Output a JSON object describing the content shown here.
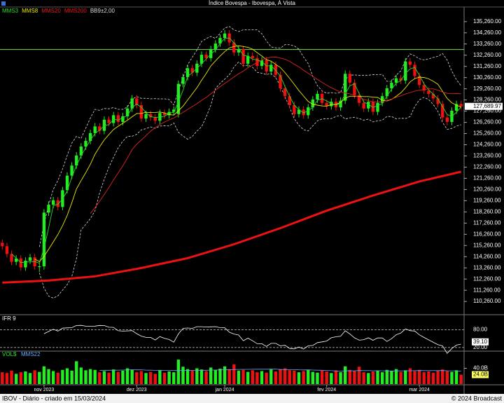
{
  "chart_data": {
    "type": "candlestick",
    "title": "Índice Bovespa - Ibovespa, À Vista",
    "footer_left": "IBOV - Diário - criado em 15/03/2024",
    "footer_right": "© 2024 Broadcast",
    "xlim": [
      -0.5,
      99.5
    ],
    "xticks": [
      {
        "value": 9,
        "label": "nov 2023"
      },
      {
        "value": 29,
        "label": "dez 2023"
      },
      {
        "value": 48,
        "label": "jan 2024"
      },
      {
        "value": 70,
        "label": "fev 2024"
      },
      {
        "value": 90,
        "label": "mar 2024"
      }
    ],
    "ylim": [
      109140,
      136440
    ],
    "yticks": [
      {
        "value": 110260,
        "label": "110,260.00"
      },
      {
        "value": 111260,
        "label": "111,260.00"
      },
      {
        "value": 112260,
        "label": "112,260.00"
      },
      {
        "value": 113260,
        "label": "113,260.00"
      },
      {
        "value": 114260,
        "label": "114,260.00"
      },
      {
        "value": 115260,
        "label": "115,260.00"
      },
      {
        "value": 116260,
        "label": "116,260.00"
      },
      {
        "value": 117260,
        "label": "117,260.00"
      },
      {
        "value": 118260,
        "label": "118,260.00"
      },
      {
        "value": 119260,
        "label": "119,260.00"
      },
      {
        "value": 120260,
        "label": "120,260.00"
      },
      {
        "value": 121260,
        "label": "121,260.00"
      },
      {
        "value": 122260,
        "label": "122,260.00"
      },
      {
        "value": 123260,
        "label": "123,260.00"
      },
      {
        "value": 124260,
        "label": "124,260.00"
      },
      {
        "value": 125260,
        "label": "125,260.00"
      },
      {
        "value": 126260,
        "label": "126,260.00"
      },
      {
        "value": 127260,
        "label": "127,260.00"
      },
      {
        "value": 128260,
        "label": "128,260.00"
      },
      {
        "value": 129260,
        "label": "129,260.00"
      },
      {
        "value": 130260,
        "label": "130,260.00"
      },
      {
        "value": 131260,
        "label": "131,260.00"
      },
      {
        "value": 132260,
        "label": "132,260.00"
      },
      {
        "value": 133260,
        "label": "133,260.00"
      },
      {
        "value": 134260,
        "label": "134,260.00"
      },
      {
        "value": 135260,
        "label": "135,260.00"
      }
    ],
    "up_color": "#22ee22",
    "down_color": "#ee1111",
    "hline": {
      "value": 132770,
      "color": "#7ddc5a"
    },
    "last_price": {
      "value": 127689.97,
      "label": "127,689.97"
    },
    "open": [
      115500,
      115200,
      114500,
      113800,
      114100,
      113300,
      113900,
      114200,
      113400,
      113400,
      118200,
      118900,
      119300,
      118700,
      120200,
      121500,
      122400,
      123300,
      124100,
      124600,
      125300,
      125900,
      125500,
      126500,
      126200,
      126900,
      126300,
      126800,
      127500,
      128400,
      127800,
      126600,
      127000,
      126700,
      126400,
      127100,
      126900,
      127200,
      127000,
      129700,
      130300,
      131100,
      130700,
      131500,
      132300,
      132000,
      132800,
      133300,
      133800,
      134200,
      133400,
      132500,
      132800,
      131500,
      132200,
      132000,
      131300,
      131800,
      130800,
      131400,
      130500,
      129300,
      128600,
      127800,
      127000,
      127400,
      126900,
      127600,
      128300,
      128800,
      128000,
      127700,
      128100,
      127600,
      128200,
      130600,
      129800,
      128700,
      128000,
      127500,
      128100,
      127200,
      128000,
      128600,
      129300,
      129800,
      130200,
      130000,
      131700,
      131400,
      130400,
      129600,
      129100,
      128800,
      128400,
      127900,
      126700,
      126300,
      127300,
      127900
    ],
    "high": [
      115800,
      115500,
      114800,
      114400,
      114400,
      114200,
      114500,
      114500,
      113700,
      118500,
      119200,
      119600,
      119600,
      120500,
      121800,
      122700,
      123600,
      124400,
      124900,
      125600,
      126200,
      126200,
      126800,
      126800,
      127200,
      127200,
      127100,
      127800,
      128700,
      128700,
      128100,
      127300,
      127300,
      127000,
      127400,
      127400,
      127500,
      127700,
      130000,
      130600,
      131400,
      131400,
      131800,
      132600,
      132600,
      133100,
      133600,
      134100,
      134500,
      134500,
      133700,
      133100,
      133100,
      132500,
      132500,
      132300,
      132100,
      132100,
      131700,
      131700,
      130800,
      129600,
      128900,
      128100,
      127700,
      127700,
      127900,
      128600,
      129100,
      129100,
      128300,
      128400,
      128400,
      128500,
      130900,
      130900,
      130100,
      129000,
      128300,
      128400,
      128400,
      128300,
      128900,
      129600,
      130100,
      130500,
      130500,
      132000,
      132000,
      131700,
      130700,
      129900,
      129400,
      129100,
      128700,
      128200,
      127000,
      127600,
      128200,
      128200
    ],
    "low": [
      114900,
      114200,
      113500,
      113500,
      113000,
      113000,
      113600,
      113100,
      112900,
      113100,
      117900,
      118600,
      118400,
      118400,
      119900,
      121200,
      122100,
      123000,
      123800,
      124300,
      125000,
      125200,
      125200,
      125900,
      125900,
      126000,
      126000,
      126500,
      127200,
      127500,
      126300,
      126300,
      126400,
      126100,
      126100,
      126600,
      126600,
      126900,
      126700,
      129400,
      130000,
      130400,
      130400,
      131200,
      131700,
      131700,
      132500,
      133000,
      133500,
      133100,
      132200,
      132200,
      131200,
      131200,
      131700,
      131000,
      131000,
      130500,
      130500,
      130200,
      129000,
      128300,
      127500,
      126700,
      126700,
      126600,
      126600,
      127300,
      128000,
      127700,
      127400,
      127400,
      127300,
      127300,
      127900,
      129500,
      128400,
      127700,
      127200,
      127200,
      126900,
      126900,
      127700,
      128300,
      129000,
      129500,
      129700,
      129700,
      131100,
      130100,
      129300,
      128800,
      128500,
      128100,
      127600,
      126400,
      126000,
      126000,
      127000,
      127390
    ],
    "close": [
      115200,
      114500,
      113800,
      114100,
      113300,
      113900,
      114200,
      113400,
      113400,
      118200,
      118900,
      119300,
      118700,
      120200,
      121500,
      122400,
      123300,
      124100,
      124600,
      125300,
      125900,
      125500,
      126500,
      126200,
      126900,
      126300,
      126800,
      127500,
      128400,
      127800,
      126600,
      127000,
      126700,
      126400,
      127100,
      126900,
      127200,
      127400,
      129700,
      130300,
      131100,
      130700,
      131500,
      132300,
      132000,
      132800,
      133300,
      133800,
      134200,
      133400,
      132500,
      132800,
      131500,
      132200,
      132000,
      131300,
      131800,
      130800,
      131400,
      130500,
      129300,
      128600,
      127800,
      127000,
      127400,
      126900,
      127600,
      128300,
      128800,
      128000,
      127700,
      128100,
      127600,
      128200,
      130600,
      129800,
      128700,
      128000,
      127500,
      128100,
      127200,
      128000,
      128600,
      129300,
      129800,
      130200,
      130000,
      131700,
      131400,
      130400,
      129600,
      129100,
      128800,
      128400,
      127900,
      126700,
      126300,
      127300,
      127900,
      127689.97
    ],
    "series": [
      {
        "name": "MMS3",
        "color": "#22dd22",
        "period": 3
      },
      {
        "name": "MMS8",
        "color": "#e8e800",
        "period": 8
      },
      {
        "name": "MMS20",
        "color": "#dd2222",
        "period": 20
      },
      {
        "name": "MMS200",
        "color": "#ee1111",
        "x": [
          0,
          10,
          20,
          30,
          40,
          50,
          60,
          70,
          80,
          90,
          99
        ],
        "values": [
          111940,
          112130,
          112500,
          113250,
          114130,
          115370,
          116810,
          118370,
          119730,
          120980,
          121850
        ]
      },
      {
        "name": "BB9±2,00",
        "color": "#dddddd",
        "period": 9,
        "width": 2
      }
    ],
    "rsi": {
      "name": "IFR 9",
      "period": 9,
      "color": "#ffffff",
      "ylim": [
        10,
        105
      ],
      "yticks": [
        {
          "value": 80,
          "label": "80.00"
        },
        {
          "value": 20,
          "label": "20.00"
        }
      ],
      "last": {
        "value": 39.1,
        "label": "39.10"
      }
    },
    "volume": {
      "name": "VOL$",
      "ma_name": "MMS22",
      "ma_period": 22,
      "ma_color": "#66aaff",
      "ylim": [
        0,
        80
      ],
      "yticks": [
        {
          "value": 40,
          "label": "40.0B"
        }
      ],
      "last": {
        "value": 24,
        "label": "24.0B"
      },
      "values": [
        30,
        28,
        34,
        26,
        30,
        32,
        28,
        35,
        31,
        45,
        38,
        33,
        29,
        36,
        40,
        34,
        58,
        42,
        35,
        38,
        36,
        30,
        33,
        29,
        37,
        31,
        34,
        40,
        36,
        30,
        33,
        28,
        31,
        26,
        35,
        29,
        32,
        30,
        62,
        44,
        38,
        35,
        40,
        37,
        33,
        42,
        36,
        39,
        45,
        38,
        50,
        34,
        36,
        31,
        35,
        30,
        33,
        29,
        37,
        32,
        38,
        40,
        35,
        34,
        30,
        33,
        36,
        31,
        29,
        34,
        32,
        28,
        35,
        30,
        45,
        36,
        33,
        44,
        30,
        28,
        32,
        34,
        30,
        36,
        33,
        38,
        31,
        35,
        40,
        33,
        36,
        30,
        32,
        29,
        34,
        37,
        33,
        31,
        35,
        24
      ]
    }
  }
}
